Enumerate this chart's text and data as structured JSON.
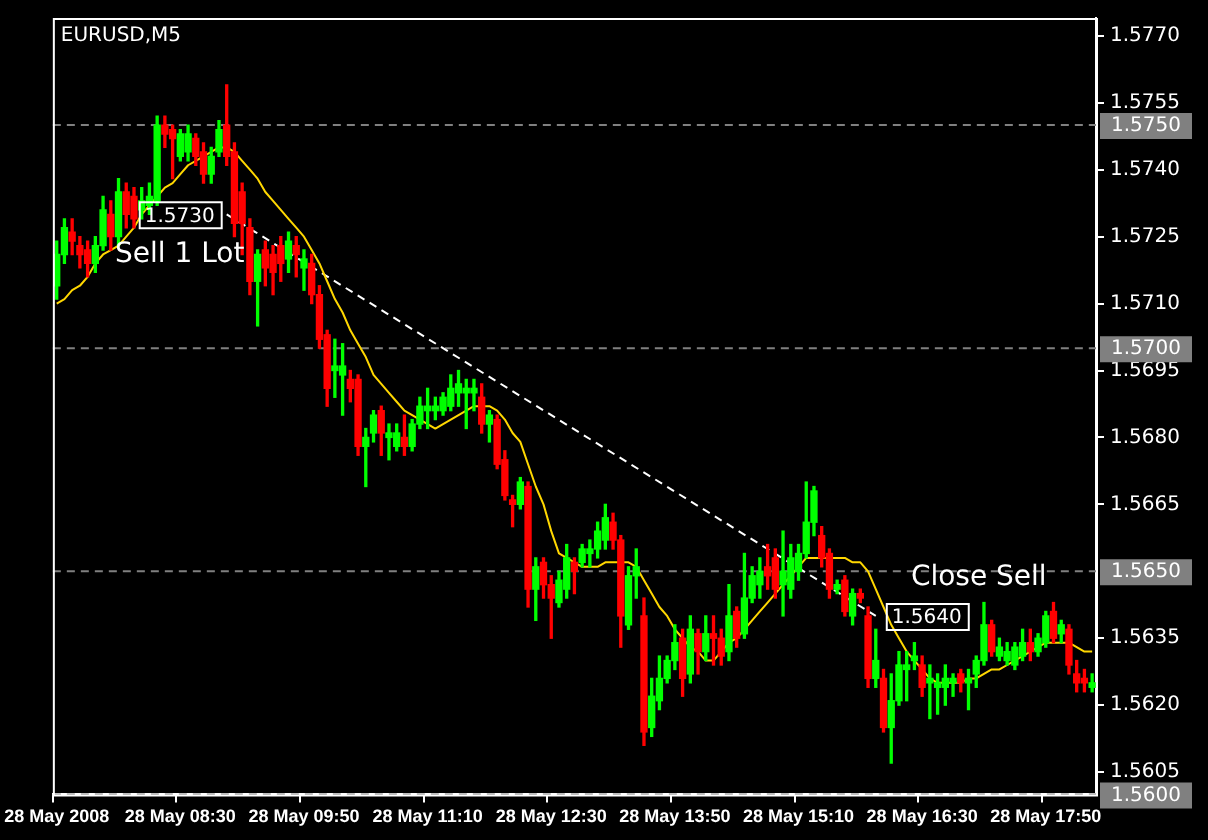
{
  "chart_data": {
    "type": "candlestick",
    "title": "EURUSD,M5",
    "categories": [
      "28 May 2008",
      null,
      null,
      null,
      null,
      null,
      null,
      null,
      null,
      null,
      null,
      null,
      null,
      null,
      null,
      null,
      "28 May 08:30",
      null,
      null,
      null,
      null,
      null,
      null,
      null,
      null,
      null,
      null,
      null,
      null,
      null,
      null,
      null,
      "28 May 09:50",
      null,
      null,
      null,
      null,
      null,
      null,
      null,
      null,
      null,
      null,
      null,
      null,
      null,
      null,
      null,
      "28 May 11:10",
      null,
      null,
      null,
      null,
      null,
      null,
      null,
      null,
      null,
      null,
      null,
      null,
      null,
      null,
      null,
      "28 May 12:30",
      null,
      null,
      null,
      null,
      null,
      null,
      null,
      null,
      null,
      null,
      null,
      null,
      null,
      null,
      null,
      "28 May 13:50",
      null,
      null,
      null,
      null,
      null,
      null,
      null,
      null,
      null,
      null,
      null,
      null,
      null,
      null,
      null,
      "28 May 15:10",
      null,
      null,
      null,
      null,
      null,
      null,
      null,
      null,
      null,
      null,
      null,
      null,
      null,
      null,
      null,
      "28 May 16:30",
      null,
      null,
      null,
      null,
      null,
      null,
      null,
      null,
      null,
      null,
      null,
      null,
      null,
      null,
      null,
      "28 May 17:50",
      null,
      null,
      null,
      null,
      null,
      null
    ],
    "ohlc": [
      [
        1.5714,
        1.5724,
        1.5711,
        1.5721
      ],
      [
        1.5721,
        1.5729,
        1.5719,
        1.5727
      ],
      [
        1.5726,
        1.5729,
        1.5721,
        1.5724
      ],
      [
        1.5723,
        1.5725,
        1.5718,
        1.5721
      ],
      [
        1.5722,
        1.5724,
        1.5716,
        1.5719
      ],
      [
        1.5719,
        1.5725,
        1.5717,
        1.5723
      ],
      [
        1.5723,
        1.5734,
        1.5722,
        1.5731
      ],
      [
        1.573,
        1.5733,
        1.5722,
        1.5725
      ],
      [
        1.5725,
        1.5738,
        1.5723,
        1.5735
      ],
      [
        1.5735,
        1.5737,
        1.5727,
        1.573
      ],
      [
        1.5734,
        1.5736,
        1.5727,
        1.5729
      ],
      [
        1.5731,
        1.5736,
        1.5729,
        1.5733
      ],
      [
        1.5732,
        1.5737,
        1.573,
        1.5734
      ],
      [
        1.5733,
        1.5752,
        1.5732,
        1.575
      ],
      [
        1.575,
        1.5752,
        1.5745,
        1.5748
      ],
      [
        1.5749,
        1.575,
        1.5738,
        1.5747
      ],
      [
        1.5743,
        1.5749,
        1.5742,
        1.5748
      ],
      [
        1.5744,
        1.575,
        1.5742,
        1.5748
      ],
      [
        1.5747,
        1.5748,
        1.5741,
        1.5743
      ],
      [
        1.5744,
        1.5746,
        1.5737,
        1.5739
      ],
      [
        1.5739,
        1.5745,
        1.5737,
        1.5743
      ],
      [
        1.5744,
        1.5751,
        1.5743,
        1.5749
      ],
      [
        1.575,
        1.5759,
        1.5741,
        1.5743
      ],
      [
        1.5744,
        1.5746,
        1.5725,
        1.5728
      ],
      [
        1.5735,
        1.5737,
        1.5721,
        1.5728
      ],
      [
        1.5727,
        1.5729,
        1.5712,
        1.5715
      ],
      [
        1.5715,
        1.5722,
        1.5705,
        1.5721
      ],
      [
        1.5722,
        1.5724,
        1.5714,
        1.5718
      ],
      [
        1.5721,
        1.5723,
        1.5712,
        1.5717
      ],
      [
        1.5723,
        1.5725,
        1.5715,
        1.5719
      ],
      [
        1.572,
        1.5726,
        1.5717,
        1.5724
      ],
      [
        1.5723,
        1.5725,
        1.5716,
        1.5721
      ],
      [
        1.5718,
        1.5722,
        1.5713,
        1.572
      ],
      [
        1.5719,
        1.5721,
        1.571,
        1.5712
      ],
      [
        1.5712,
        1.5714,
        1.57,
        1.5702
      ],
      [
        1.5703,
        1.5704,
        1.5687,
        1.5691
      ],
      [
        1.5695,
        1.5702,
        1.5689,
        1.5696
      ],
      [
        1.5694,
        1.5701,
        1.5685,
        1.5696
      ],
      [
        1.5693,
        1.5695,
        1.5688,
        1.5691
      ],
      [
        1.5693,
        1.5694,
        1.5676,
        1.5678
      ],
      [
        1.5678,
        1.5682,
        1.5669,
        1.568
      ],
      [
        1.5681,
        1.5686,
        1.5679,
        1.5685
      ],
      [
        1.5686,
        1.5687,
        1.5676,
        1.5681
      ],
      [
        1.568,
        1.5683,
        1.5675,
        1.5681
      ],
      [
        1.5678,
        1.5683,
        1.5677,
        1.5681
      ],
      [
        1.568,
        1.5685,
        1.5676,
        1.5678
      ],
      [
        1.5678,
        1.5684,
        1.5677,
        1.5683
      ],
      [
        1.5683,
        1.5689,
        1.5682,
        1.5687
      ],
      [
        1.5686,
        1.5691,
        1.5682,
        1.5687
      ],
      [
        1.5686,
        1.5689,
        1.5684,
        1.5687
      ],
      [
        1.5686,
        1.569,
        1.5685,
        1.5689
      ],
      [
        1.5687,
        1.5694,
        1.5686,
        1.5691
      ],
      [
        1.569,
        1.5695,
        1.5687,
        1.5692
      ],
      [
        1.569,
        1.5693,
        1.5682,
        1.5691
      ],
      [
        1.569,
        1.5693,
        1.5686,
        1.5691
      ],
      [
        1.5689,
        1.5692,
        1.5681,
        1.5683
      ],
      [
        1.5683,
        1.5686,
        1.5679,
        1.5685
      ],
      [
        1.5684,
        1.5685,
        1.5673,
        1.5674
      ],
      [
        1.5675,
        1.5677,
        1.5666,
        1.5667
      ],
      [
        1.5666,
        1.5667,
        1.566,
        1.5665
      ],
      [
        1.5665,
        1.5671,
        1.5664,
        1.567
      ],
      [
        1.5669,
        1.567,
        1.5642,
        1.5646
      ],
      [
        1.5646,
        1.5653,
        1.5639,
        1.5651
      ],
      [
        1.5652,
        1.5653,
        1.5644,
        1.5647
      ],
      [
        1.5647,
        1.5649,
        1.5635,
        1.5644
      ],
      [
        1.5643,
        1.565,
        1.5642,
        1.5648
      ],
      [
        1.5646,
        1.5656,
        1.5644,
        1.5653
      ],
      [
        1.5652,
        1.5653,
        1.5645,
        1.565
      ],
      [
        1.5652,
        1.5656,
        1.5651,
        1.5655
      ],
      [
        1.5654,
        1.5657,
        1.5651,
        1.5655
      ],
      [
        1.5655,
        1.5661,
        1.5653,
        1.5659
      ],
      [
        1.5657,
        1.5665,
        1.5655,
        1.5662
      ],
      [
        1.5661,
        1.5663,
        1.5655,
        1.5657
      ],
      [
        1.5657,
        1.5658,
        1.5633,
        1.564
      ],
      [
        1.5638,
        1.5651,
        1.5637,
        1.5649
      ],
      [
        1.5649,
        1.5655,
        1.5644,
        1.5651
      ],
      [
        1.564,
        1.5644,
        1.5611,
        1.5614
      ],
      [
        1.5615,
        1.5626,
        1.5613,
        1.5622
      ],
      [
        1.5621,
        1.5631,
        1.5619,
        1.5626
      ],
      [
        1.5626,
        1.5631,
        1.5625,
        1.563
      ],
      [
        1.563,
        1.5638,
        1.5628,
        1.5634
      ],
      [
        1.5635,
        1.5637,
        1.5622,
        1.5626
      ],
      [
        1.5627,
        1.564,
        1.5625,
        1.5637
      ],
      [
        1.5636,
        1.5637,
        1.5627,
        1.5632
      ],
      [
        1.5632,
        1.564,
        1.563,
        1.5636
      ],
      [
        1.5636,
        1.564,
        1.5629,
        1.5635
      ],
      [
        1.5635,
        1.5637,
        1.5629,
        1.5631
      ],
      [
        1.5632,
        1.5647,
        1.563,
        1.564
      ],
      [
        1.5641,
        1.5642,
        1.5633,
        1.5635
      ],
      [
        1.5636,
        1.5654,
        1.5635,
        1.5644
      ],
      [
        1.5644,
        1.5651,
        1.5643,
        1.5649
      ],
      [
        1.5647,
        1.5653,
        1.5644,
        1.565
      ],
      [
        1.5651,
        1.5656,
        1.5646,
        1.5649
      ],
      [
        1.5653,
        1.5655,
        1.5644,
        1.5646
      ],
      [
        1.5647,
        1.5659,
        1.564,
        1.565
      ],
      [
        1.5646,
        1.5656,
        1.5644,
        1.5653
      ],
      [
        1.565,
        1.5656,
        1.5648,
        1.5654
      ],
      [
        1.5654,
        1.567,
        1.5653,
        1.5661
      ],
      [
        1.5661,
        1.5669,
        1.5658,
        1.5668
      ],
      [
        1.5658,
        1.566,
        1.5651,
        1.5653
      ],
      [
        1.5654,
        1.5655,
        1.5644,
        1.5646
      ],
      [
        1.5646,
        1.5648,
        1.5645,
        1.5647
      ],
      [
        1.5648,
        1.5649,
        1.564,
        1.5641
      ],
      [
        1.564,
        1.5646,
        1.5638,
        1.5645
      ],
      [
        1.5645,
        1.5646,
        1.5643,
        1.5644
      ],
      [
        1.564,
        1.5642,
        1.5624,
        1.5626
      ],
      [
        1.5626,
        1.5637,
        1.5624,
        1.563
      ],
      [
        1.5626,
        1.5628,
        1.5614,
        1.5615
      ],
      [
        1.5615,
        1.5627,
        1.5607,
        1.5621
      ],
      [
        1.5621,
        1.5632,
        1.562,
        1.5629
      ],
      [
        1.5628,
        1.5632,
        1.5621,
        1.5629
      ],
      [
        1.563,
        1.5634,
        1.5628,
        1.5631
      ],
      [
        1.5629,
        1.5631,
        1.5622,
        1.5624
      ],
      [
        1.5625,
        1.5629,
        1.5617,
        1.5626
      ],
      [
        1.5624,
        1.5627,
        1.5618,
        1.5625
      ],
      [
        1.5624,
        1.5629,
        1.562,
        1.5626
      ],
      [
        1.5625,
        1.5627,
        1.5622,
        1.5626
      ],
      [
        1.5627,
        1.5628,
        1.5623,
        1.5625
      ],
      [
        1.5625,
        1.5628,
        1.5619,
        1.5626
      ],
      [
        1.5627,
        1.5631,
        1.5624,
        1.563
      ],
      [
        1.563,
        1.5643,
        1.5629,
        1.5638
      ],
      [
        1.5638,
        1.5639,
        1.5631,
        1.5632
      ],
      [
        1.5631,
        1.5635,
        1.563,
        1.5633
      ],
      [
        1.563,
        1.5634,
        1.5629,
        1.5632
      ],
      [
        1.5629,
        1.5634,
        1.5628,
        1.5633
      ],
      [
        1.5631,
        1.5637,
        1.563,
        1.5634
      ],
      [
        1.5634,
        1.5637,
        1.563,
        1.5632
      ],
      [
        1.5632,
        1.5636,
        1.5631,
        1.5635
      ],
      [
        1.5634,
        1.5641,
        1.5633,
        1.564
      ],
      [
        1.5641,
        1.5643,
        1.5634,
        1.5635
      ],
      [
        1.5636,
        1.5639,
        1.5634,
        1.5638
      ],
      [
        1.5637,
        1.5638,
        1.5627,
        1.5629
      ],
      [
        1.5627,
        1.563,
        1.5623,
        1.5625
      ],
      [
        1.5626,
        1.5628,
        1.5623,
        1.5625
      ],
      [
        1.5624,
        1.5627,
        1.5623,
        1.5625
      ]
    ],
    "colors": [
      "#00ff00",
      "#00ff00",
      "#ff0000",
      "#ff0000",
      "#ff0000",
      "#00ff00",
      "#00ff00",
      "#ff0000",
      "#00ff00",
      "#ff0000",
      "#ff0000",
      "#00ff00",
      "#00ff00",
      "#00ff00",
      "#ff0000",
      "#ff0000",
      "#00ff00",
      "#00ff00",
      "#ff0000",
      "#ff0000",
      "#00ff00",
      "#00ff00",
      "#ff0000",
      "#ff0000",
      "#ff0000",
      "#ff0000",
      "#00ff00",
      "#ff0000",
      "#ff0000",
      "#ff0000",
      "#00ff00",
      "#ff0000",
      "#00ff00",
      "#ff0000",
      "#ff0000",
      "#ff0000",
      "#00ff00",
      "#00ff00",
      "#ff0000",
      "#ff0000",
      "#00ff00",
      "#00ff00",
      "#ff0000",
      "#00ff00",
      "#00ff00",
      "#ff0000",
      "#00ff00",
      "#00ff00",
      "#00ff00",
      "#00ff00",
      "#00ff00",
      "#00ff00",
      "#00ff00",
      "#00ff00",
      "#00ff00",
      "#ff0000",
      "#00ff00",
      "#ff0000",
      "#ff0000",
      "#ff0000",
      "#00ff00",
      "#ff0000",
      "#00ff00",
      "#ff0000",
      "#ff0000",
      "#00ff00",
      "#00ff00",
      "#ff0000",
      "#00ff00",
      "#00ff00",
      "#00ff00",
      "#00ff00",
      "#ff0000",
      "#ff0000",
      "#00ff00",
      "#00ff00",
      "#ff0000",
      "#00ff00",
      "#00ff00",
      "#00ff00",
      "#00ff00",
      "#ff0000",
      "#00ff00",
      "#ff0000",
      "#00ff00",
      "#ff0000",
      "#ff0000",
      "#00ff00",
      "#ff0000",
      "#00ff00",
      "#00ff00",
      "#00ff00",
      "#ff0000",
      "#ff0000",
      "#00ff00",
      "#00ff00",
      "#00ff00",
      "#00ff00",
      "#00ff00",
      "#ff0000",
      "#ff0000",
      "#00ff00",
      "#ff0000",
      "#00ff00",
      "#ff0000",
      "#ff0000",
      "#00ff00",
      "#ff0000",
      "#00ff00",
      "#00ff00",
      "#00ff00",
      "#00ff00",
      "#ff0000",
      "#00ff00",
      "#00ff00",
      "#00ff00",
      "#00ff00",
      "#ff0000",
      "#00ff00",
      "#00ff00",
      "#00ff00",
      "#ff0000",
      "#00ff00",
      "#00ff00",
      "#00ff00",
      "#00ff00",
      "#ff0000",
      "#00ff00",
      "#00ff00",
      "#ff0000",
      "#00ff00",
      "#ff0000",
      "#ff0000",
      "#ff0000",
      "#00ff00"
    ],
    "series": [
      {
        "type": "line",
        "color": "#ffd700",
        "values": [
          1.571,
          1.5711,
          1.5713,
          1.5714,
          1.5716,
          1.5719,
          1.5721,
          1.5722,
          1.5723,
          1.5725,
          1.5727,
          1.573,
          1.5732,
          1.5734,
          1.5736,
          1.5737,
          1.5739,
          1.5741,
          1.5742,
          1.5743,
          1.5744,
          1.5745,
          1.5745,
          1.5744,
          1.5742,
          1.574,
          1.5738,
          1.5735,
          1.5733,
          1.5731,
          1.5729,
          1.5727,
          1.5725,
          1.5722,
          1.5719,
          1.5715,
          1.5711,
          1.5708,
          1.5704,
          1.5701,
          1.5698,
          1.5694,
          1.5692,
          1.569,
          1.5688,
          1.5686,
          1.5685,
          1.5684,
          1.5683,
          1.5682,
          1.5683,
          1.5684,
          1.5685,
          1.5686,
          1.5687,
          1.5687,
          1.5687,
          1.5686,
          1.5684,
          1.5681,
          1.5679,
          1.5674,
          1.5669,
          1.5665,
          1.5659,
          1.5654,
          1.5653,
          1.5652,
          1.5651,
          1.5651,
          1.5651,
          1.5652,
          1.5652,
          1.5652,
          1.5652,
          1.5651,
          1.5648,
          1.5645,
          1.5642,
          1.564,
          1.5637,
          1.5635,
          1.5633,
          1.5632,
          1.563,
          1.563,
          1.5632,
          1.5634,
          1.5635,
          1.5637,
          1.5639,
          1.5641,
          1.5643,
          1.5645,
          1.5647,
          1.5649,
          1.5651,
          1.5653,
          1.5653,
          1.5653,
          1.5653,
          1.5653,
          1.5653,
          1.5652,
          1.5652,
          1.565,
          1.5646,
          1.5642,
          1.5638,
          1.5635,
          1.5632,
          1.563,
          1.5628,
          1.5626,
          1.5625,
          1.5625,
          1.5625,
          1.5625,
          1.5626,
          1.5626,
          1.5627,
          1.5628,
          1.5628,
          1.5629,
          1.563,
          1.5631,
          1.5632,
          1.5633,
          1.5634,
          1.5634,
          1.5634,
          1.5634,
          1.5633,
          1.5632,
          1.5632
        ]
      },
      {
        "type": "line",
        "color": "#ffffff",
        "line_style": "dashed",
        "values": [
          null,
          null,
          null,
          null,
          null,
          null,
          null,
          null,
          null,
          null,
          null,
          null,
          null,
          null,
          null,
          null,
          null,
          null,
          null,
          null,
          null,
          null,
          1.573,
          null,
          null,
          null,
          null,
          null,
          null,
          null,
          null,
          null,
          null,
          null,
          null,
          null,
          null,
          null,
          null,
          null,
          null,
          null,
          null,
          null,
          null,
          null,
          null,
          null,
          null,
          null,
          null,
          null,
          null,
          null,
          null,
          null,
          null,
          null,
          null,
          null,
          null,
          null,
          null,
          null,
          null,
          null,
          null,
          null,
          null,
          null,
          null,
          null,
          null,
          null,
          null,
          null,
          null,
          null,
          null,
          null,
          null,
          null,
          null,
          null,
          null,
          null,
          null,
          null,
          null,
          null,
          null,
          null,
          null,
          null,
          null,
          null,
          null,
          null,
          null,
          null,
          null,
          null,
          null,
          null,
          null,
          null,
          1.564,
          null,
          null,
          null,
          null,
          null,
          null,
          null,
          null,
          null,
          null,
          null,
          null,
          null,
          null,
          null,
          null,
          null,
          null,
          null,
          null,
          null,
          null,
          null,
          null,
          null,
          null,
          null,
          null
        ],
        "value_labels": [
          null,
          null,
          null,
          null,
          null,
          null,
          null,
          null,
          null,
          null,
          null,
          null,
          null,
          null,
          null,
          null,
          null,
          null,
          null,
          null,
          null,
          null,
          "1.5730",
          null,
          null,
          null,
          null,
          null,
          null,
          null,
          null,
          null,
          null,
          null,
          null,
          null,
          null,
          null,
          null,
          null,
          null,
          null,
          null,
          null,
          null,
          null,
          null,
          null,
          null,
          null,
          null,
          null,
          null,
          null,
          null,
          null,
          null,
          null,
          null,
          null,
          null,
          null,
          null,
          null,
          null,
          null,
          null,
          null,
          null,
          null,
          null,
          null,
          null,
          null,
          null,
          null,
          null,
          null,
          null,
          null,
          null,
          null,
          null,
          null,
          null,
          null,
          null,
          null,
          null,
          null,
          null,
          null,
          null,
          null,
          null,
          null,
          null,
          null,
          null,
          null,
          null,
          null,
          null,
          null,
          null,
          null,
          "1.5640",
          null,
          null,
          null,
          null,
          null,
          null,
          null,
          null,
          null,
          null,
          null,
          null,
          null,
          null,
          null,
          null,
          null,
          null,
          null,
          null,
          null,
          null,
          null,
          null,
          null,
          null,
          null,
          null
        ]
      }
    ],
    "ylim": [
      1.56,
      1.5774
    ],
    "yticks": [
      {
        "value": 1.577,
        "label": "1.5770"
      },
      {
        "value": 1.5755,
        "label": "1.5755"
      },
      {
        "value": 1.574,
        "label": "1.5740"
      },
      {
        "value": 1.5725,
        "label": "1.5725"
      },
      {
        "value": 1.571,
        "label": "1.5710"
      },
      {
        "value": 1.5695,
        "label": "1.5695"
      },
      {
        "value": 1.568,
        "label": "1.5680"
      },
      {
        "value": 1.5665,
        "label": "1.5665"
      },
      {
        "value": 1.5635,
        "label": "1.5635"
      },
      {
        "value": 1.562,
        "label": "1.5620"
      },
      {
        "value": 1.5605,
        "label": "1.5605"
      }
    ],
    "ref_lines": [
      {
        "axis": "y",
        "value": 1.575,
        "label": "1.5750",
        "color": "#808080",
        "line_style": "dashed"
      },
      {
        "axis": "y",
        "value": 1.57,
        "label": "1.5700",
        "color": "#808080",
        "line_style": "dashed"
      },
      {
        "axis": "y",
        "value": 1.565,
        "label": "1.5650",
        "color": "#808080",
        "line_style": "dashed"
      },
      {
        "axis": "y",
        "value": 1.56,
        "label": "1.5600",
        "color": "#808080",
        "line_style": "dashed"
      }
    ],
    "annotations": [
      "Sell 1 Lot",
      "Close Sell"
    ],
    "marker": "none"
  }
}
